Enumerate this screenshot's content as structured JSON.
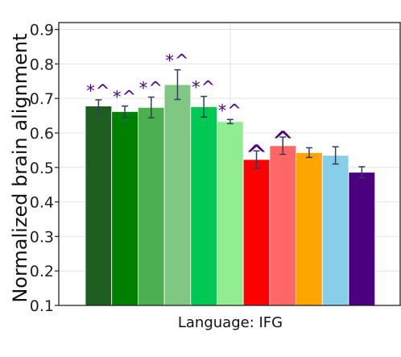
{
  "chart_data": {
    "type": "bar",
    "title": "",
    "xlabel": "Language: IFG",
    "ylabel": "Normalized brain alignment",
    "ylim": [
      0.1,
      0.92
    ],
    "yticks": [
      "0.1",
      "0.2",
      "0.3",
      "0.4",
      "0.5",
      "0.6",
      "0.7",
      "0.8",
      "0.9"
    ],
    "grid": true,
    "legend": "none",
    "bars": [
      {
        "value": 0.678,
        "err": 0.018,
        "color": "#1e5e20",
        "annotation": "*^",
        "annot_size": "small"
      },
      {
        "value": 0.662,
        "err": 0.016,
        "color": "#008000",
        "annotation": "*^",
        "annot_size": "small"
      },
      {
        "value": 0.674,
        "err": 0.03,
        "color": "#4caf50",
        "annotation": "*^",
        "annot_size": "small"
      },
      {
        "value": 0.74,
        "err": 0.043,
        "color": "#81c784",
        "annotation": "*^",
        "annot_size": "small"
      },
      {
        "value": 0.676,
        "err": 0.03,
        "color": "#00c853",
        "annotation": "*^",
        "annot_size": "small"
      },
      {
        "value": 0.633,
        "err": 0.006,
        "color": "#90ee90",
        "annotation": "*^",
        "annot_size": "small"
      },
      {
        "value": 0.523,
        "err": 0.025,
        "color": "#ff0000",
        "annotation": "^",
        "annot_size": "large"
      },
      {
        "value": 0.563,
        "err": 0.025,
        "color": "#ff6666",
        "annotation": "^",
        "annot_size": "large"
      },
      {
        "value": 0.543,
        "err": 0.014,
        "color": "#ffa500",
        "annotation": "",
        "annot_size": "small"
      },
      {
        "value": 0.535,
        "err": 0.025,
        "color": "#87ceeb",
        "annotation": "",
        "annot_size": "small"
      },
      {
        "value": 0.486,
        "err": 0.016,
        "color": "#4b0080",
        "annotation": "",
        "annot_size": "small"
      }
    ]
  }
}
